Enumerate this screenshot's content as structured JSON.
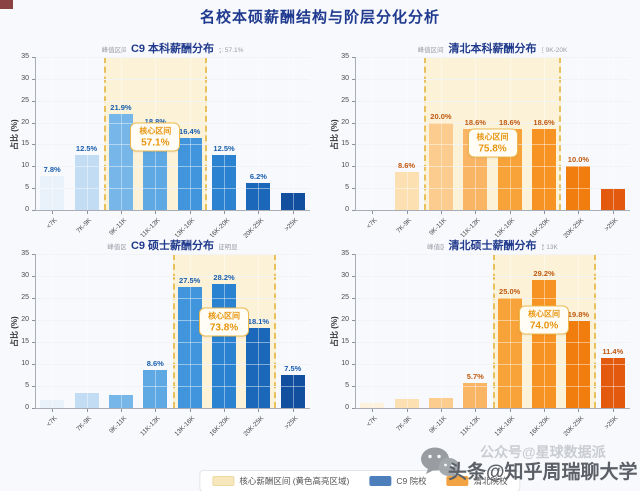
{
  "page": {
    "title": "名校本硕薪酬结构与阶层分化分析",
    "title_color": "#1f3a8f",
    "background": "#f8f9fc"
  },
  "legend": {
    "items": [
      {
        "label": "核心薪酬区间 (黄色高亮区域)",
        "color": "#f6e8bc",
        "border": "#ecd9a0"
      },
      {
        "label": "C9 院校",
        "color": "#4d7fbd",
        "border": "#4d7fbd"
      },
      {
        "label": "清北院校",
        "color": "#f2a444",
        "border": "#f2a444"
      }
    ]
  },
  "watermark": {
    "icon": "wechat-icon",
    "back_text": "公众号@星球数据派",
    "front_text": "头条@知乎周瑞聊大学"
  },
  "chart_data": [
    {
      "type": "bar",
      "title": "C9 本科薪酬分布",
      "subtitle": "峰值区间: 9K-11K (21.9%) | 核心区间占比: 57.1%",
      "ylabel": "占比 (%)",
      "ylim": [
        0,
        35
      ],
      "yticks": [
        0,
        5,
        10,
        15,
        20,
        25,
        30,
        35
      ],
      "categories": [
        "<7K",
        "7K-9K",
        "9K-11K",
        "11K-13K",
        "13K-16K",
        "16K-20K",
        "20K-25K",
        ">25K"
      ],
      "values": [
        7.8,
        12.5,
        21.9,
        18.8,
        16.4,
        12.5,
        6.2,
        3.9
      ],
      "labels": [
        "7.8%",
        "12.5%",
        "21.9%",
        "18.8%",
        "16.4%",
        "12.5%",
        "6.2%",
        ""
      ],
      "palette": [
        "#e9f2fb",
        "#c2dcf3",
        "#76b6e9",
        "#5ea8e4",
        "#4095dd",
        "#2a82d0",
        "#1b68bb",
        "#124f9e"
      ],
      "label_color": "#1a5fae",
      "highlight": {
        "from_index": 2,
        "to_index": 4,
        "fill": "#fbf2d8",
        "border": "#e8c05c"
      },
      "annotation": {
        "line1": "核心区间",
        "line2": "57.1%",
        "color": "#e8950f",
        "y_frac": 0.52
      }
    },
    {
      "type": "bar",
      "title": "清北本科薪酬分布",
      "subtitle": "峰值区间: 9K-11K (20.0%) | 核心区间延伸至 9K-20K",
      "ylabel": "占比 (%)",
      "ylim": [
        0,
        35
      ],
      "yticks": [
        0,
        5,
        10,
        15,
        20,
        25,
        30,
        35
      ],
      "categories": [
        "<7K",
        "7K-9K",
        "9K-11K",
        "11K-13K",
        "13K-16K",
        "16K-20K",
        "20K-25K",
        ">25K"
      ],
      "values": [
        0,
        8.6,
        20.0,
        18.6,
        18.6,
        18.6,
        10.0,
        4.9
      ],
      "labels": [
        "",
        "8.6%",
        "20.0%",
        "18.6%",
        "18.6%",
        "18.6%",
        "10.0%",
        ""
      ],
      "palette": [
        "#fdf2dd",
        "#fce0b2",
        "#fbcc8d",
        "#f9b464",
        "#f8a33a",
        "#f79322",
        "#f07d0e",
        "#e3590e"
      ],
      "label_color": "#c05a10",
      "highlight": {
        "from_index": 2,
        "to_index": 5,
        "fill": "#fbf2d8",
        "border": "#e8c05c"
      },
      "annotation": {
        "line1": "核心区间",
        "line2": "75.8%",
        "color": "#e8950f",
        "y_frac": 0.56
      }
    },
    {
      "type": "bar",
      "title": "C9 硕士薪酬分布",
      "subtitle": "峰值区间: 16K-20K (28.2%) | 右偏态特征明显",
      "ylabel": "占比 (%)",
      "ylim": [
        0,
        35
      ],
      "yticks": [
        0,
        5,
        10,
        15,
        20,
        25,
        30,
        35
      ],
      "categories": [
        "<7K",
        "7K-9K",
        "9K-11K",
        "11K-13K",
        "13K-16K",
        "16K-20K",
        "20K-25K",
        ">25K"
      ],
      "values": [
        1.9,
        3.4,
        2.9,
        8.6,
        27.5,
        28.2,
        18.1,
        7.5
      ],
      "labels": [
        "",
        "",
        "",
        "8.6%",
        "27.5%",
        "28.2%",
        "18.1%",
        "7.5%"
      ],
      "palette": [
        "#e9f2fb",
        "#c2dcf3",
        "#76b6e9",
        "#5ea8e4",
        "#4095dd",
        "#2a82d0",
        "#1b68bb",
        "#124f9e"
      ],
      "label_color": "#1a5fae",
      "highlight": {
        "from_index": 4,
        "to_index": 6,
        "fill": "#fbf2d8",
        "border": "#e8c05c"
      },
      "annotation": {
        "line1": "核心区间",
        "line2": "73.8%",
        "color": "#e8950f",
        "y_frac": 0.44
      }
    },
    {
      "type": "bar",
      "title": "清北硕士薪酬分布",
      "subtitle": "峰值区间: 16K-20K (29.2%) | 中位数超过 13K",
      "ylabel": "占比 (%)",
      "ylim": [
        0,
        35
      ],
      "yticks": [
        0,
        5,
        10,
        15,
        20,
        25,
        30,
        35
      ],
      "categories": [
        "<7K",
        "7K-9K",
        "9K-11K",
        "11K-13K",
        "13K-16K",
        "16K-20K",
        "20K-25K",
        ">25K"
      ],
      "values": [
        1.1,
        2.0,
        2.3,
        5.7,
        25.0,
        29.2,
        19.8,
        11.4
      ],
      "labels": [
        "",
        "",
        "",
        "5.7%",
        "25.0%",
        "29.2%",
        "19.8%",
        "11.4%"
      ],
      "palette": [
        "#fdf2dd",
        "#fce0b2",
        "#fbcc8d",
        "#f9b464",
        "#f8a33a",
        "#f79322",
        "#f07d0e",
        "#e3590e"
      ],
      "label_color": "#c05a10",
      "highlight": {
        "from_index": 4,
        "to_index": 6,
        "fill": "#fbf2d8",
        "border": "#e8c05c"
      },
      "annotation": {
        "line1": "核心区间",
        "line2": "74.0%",
        "color": "#e8950f",
        "y_frac": 0.43
      }
    }
  ]
}
